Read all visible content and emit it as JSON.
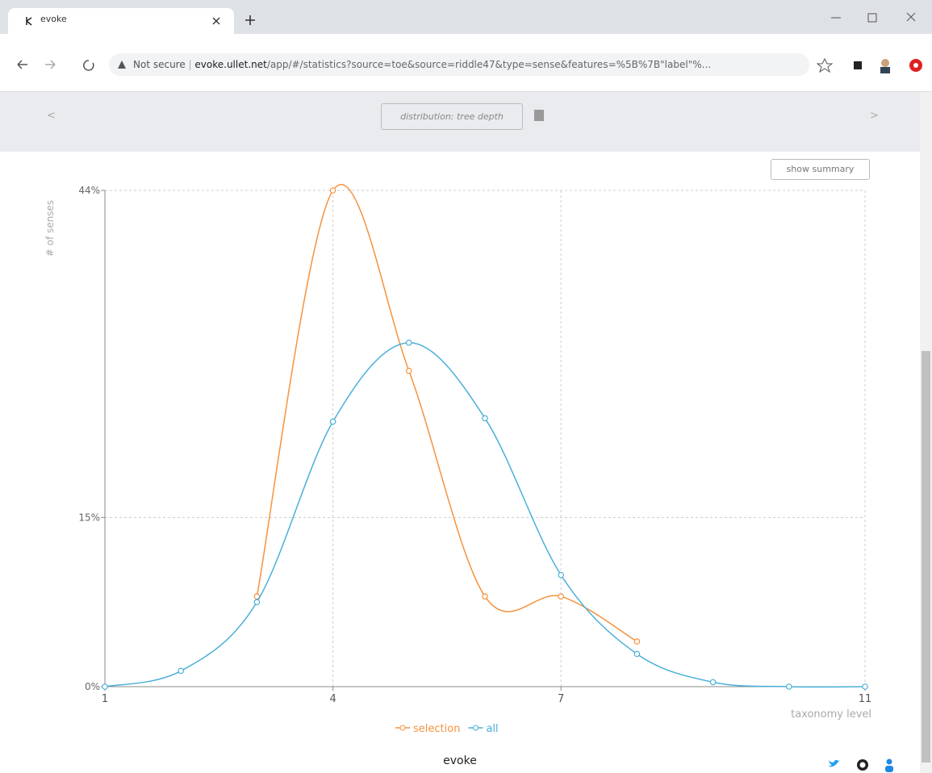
{
  "browser": {
    "tab_title": "evoke",
    "security": "Not secure",
    "url_host": "evoke.ullet.net",
    "url_path": "/app/#/statistics?source=toe&source=riddle47&type=sense&features=%5B%7B\"label\"%..."
  },
  "page": {
    "nav_prev": "<",
    "nav_next": ">",
    "view_label": "distribution: tree depth",
    "summary_button": "show summary",
    "footer": "evoke"
  },
  "chart_data": {
    "type": "line",
    "ylabel": "# of senses",
    "xlabel": "taxonomy level",
    "x": [
      1,
      2,
      3,
      4,
      5,
      6,
      7,
      8,
      9,
      10,
      11
    ],
    "series": [
      {
        "name": "selection",
        "color": "#f5923e",
        "values": [
          null,
          null,
          8,
          44,
          28,
          8,
          8,
          4,
          null,
          null,
          null
        ]
      },
      {
        "name": "all",
        "color": "#4ab0d9",
        "values": [
          0,
          1.4,
          7.5,
          23.5,
          30.5,
          23.8,
          9.9,
          2.9,
          0.4,
          0,
          0
        ]
      }
    ],
    "xlim": [
      1,
      11
    ],
    "xticks": [
      1,
      4,
      7,
      11
    ],
    "ylim": [
      0,
      44
    ],
    "yticks": [
      {
        "value": 0,
        "label": "0%"
      },
      {
        "value": 15,
        "label": "15%"
      },
      {
        "value": 44,
        "label": "44%"
      }
    ],
    "grid": true
  }
}
